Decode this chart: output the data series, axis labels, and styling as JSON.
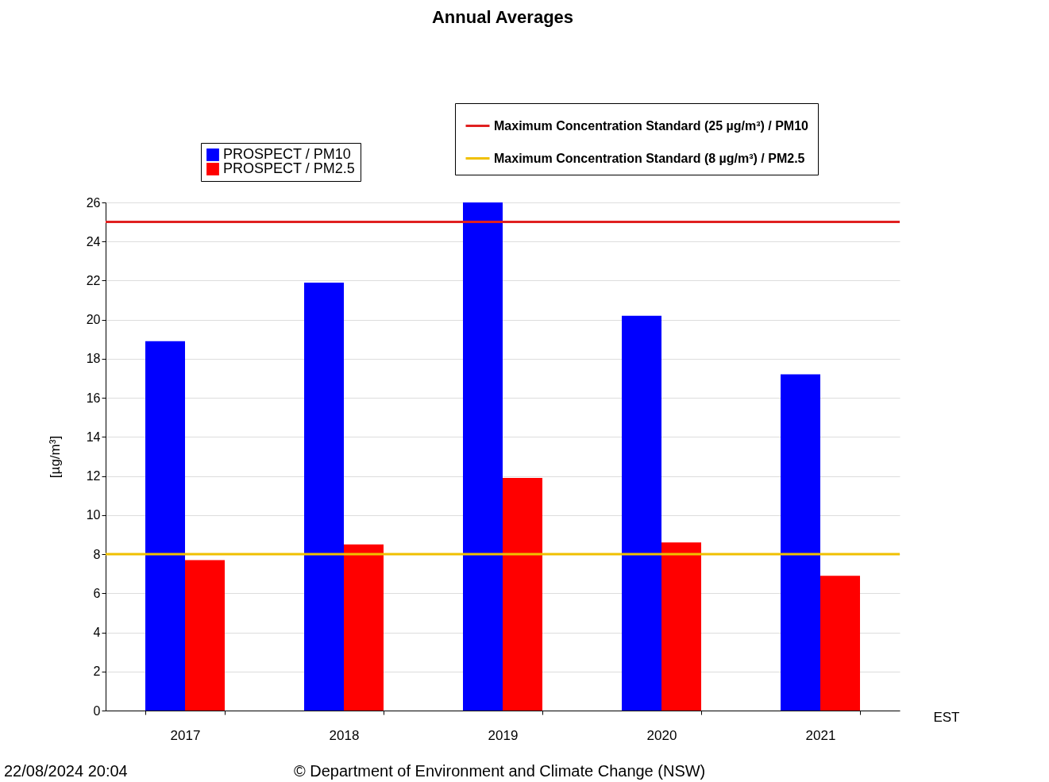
{
  "chart_data": {
    "type": "bar",
    "title": "Annual Averages",
    "xlabel": "EST",
    "ylabel": "[µg/m³]",
    "categories": [
      "2017",
      "2018",
      "2019",
      "2020",
      "2021"
    ],
    "series": [
      {
        "name": "PROSPECT / PM10",
        "color": "#0000ff",
        "values": [
          18.9,
          21.9,
          26.0,
          20.2,
          17.2
        ]
      },
      {
        "name": "PROSPECT / PM2.5",
        "color": "#ff0000",
        "values": [
          7.7,
          8.5,
          11.9,
          8.6,
          6.9
        ]
      }
    ],
    "ylim": [
      0,
      26
    ],
    "yticks": [
      0,
      2,
      4,
      6,
      8,
      10,
      12,
      14,
      16,
      18,
      20,
      22,
      24,
      26
    ],
    "grid": "y",
    "legend": "top",
    "ref_lines": [
      {
        "axis": "y",
        "value": 25,
        "label": "Maximum Concentration Standard (25 µg/m³) / PM10",
        "color": "#e02020"
      },
      {
        "axis": "y",
        "value": 8,
        "label": "Maximum Concentration Standard (8 µg/m³) / PM2.5",
        "color": "#f0c000"
      }
    ],
    "annotations": [
      "22/08/2024 20:04",
      "© Department of Environment and Climate Change (NSW)"
    ]
  }
}
